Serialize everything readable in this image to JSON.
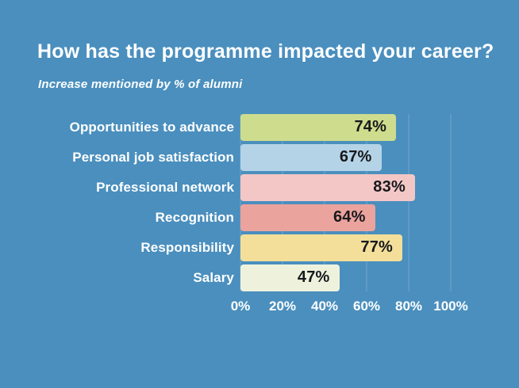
{
  "colors": {
    "background": "#4a8fbe",
    "text": "#ffffff",
    "value_text": "#17191c",
    "gridline": "rgba(255,255,255,0.22)"
  },
  "header": {
    "title": "How has the programme impacted your career?",
    "subtitle": "Increase mentioned by % of alumni"
  },
  "chart_data": {
    "type": "bar",
    "orientation": "horizontal",
    "title": "How has the programme impacted your career?",
    "subtitle": "Increase mentioned by % of alumni",
    "categories": [
      "Opportunities to advance",
      "Personal job satisfaction",
      "Professional network",
      "Recognition",
      "Responsibility",
      "Salary"
    ],
    "values": [
      74,
      67,
      83,
      64,
      77,
      47
    ],
    "value_labels": [
      "74%",
      "67%",
      "83%",
      "64%",
      "77%",
      "47%"
    ],
    "bar_colors": [
      "#cddd8d",
      "#b5d3e6",
      "#f4c7c7",
      "#eba39d",
      "#f3df99",
      "#eef2dd"
    ],
    "x_ticks": [
      "0%",
      "20%",
      "40%",
      "60%",
      "80%",
      "100%"
    ],
    "x_tick_positions": [
      0,
      20,
      40,
      60,
      80,
      100
    ],
    "xlim": [
      0,
      100
    ],
    "grid": true,
    "legend": "none",
    "value_label_position": "inside-end"
  }
}
